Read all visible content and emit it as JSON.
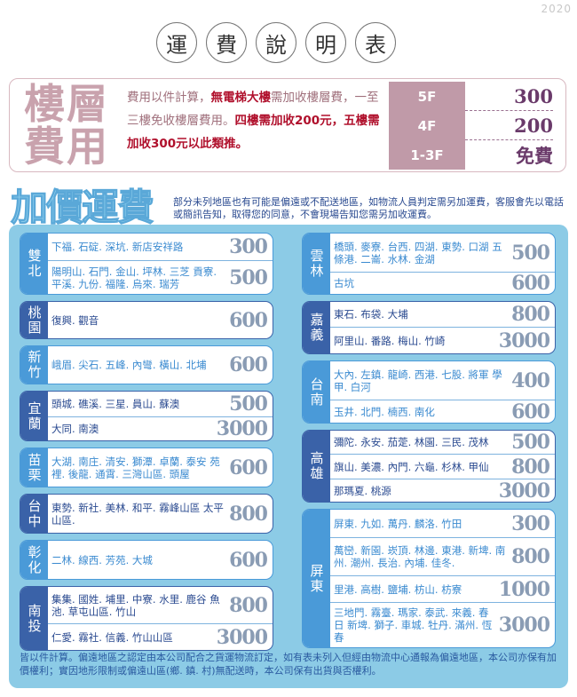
{
  "year": "2020",
  "title": [
    "運",
    "費",
    "說",
    "明",
    "表"
  ],
  "floor": {
    "heading": "樓層費用",
    "desc_parts": [
      {
        "t": "費用以件計算，",
        "hl": false
      },
      {
        "t": "無電梯大樓",
        "hl": true
      },
      {
        "t": "需加收樓層費，一至三樓免收樓層費用。",
        "hl": false
      },
      {
        "t": "四樓需加收200元，五樓需加收300元以此類推。",
        "hl": true
      }
    ],
    "table": [
      {
        "floor": "5F",
        "fee": "300"
      },
      {
        "floor": "4F",
        "fee": "200"
      },
      {
        "floor": "1-3F",
        "fee": "免費"
      }
    ]
  },
  "surcharge": {
    "heading": "加價運費",
    "desc": "部分未列地區也有可能是偏遠或不配送地區，如物流人員判定需另加運費，客服會先以電話或簡訊告知，取得您的同意，不會現場告知您需另加收運費。"
  },
  "colors": {
    "light": "#4a9ad8",
    "dark": "#3a62a8"
  },
  "left": [
    {
      "region": "雙北",
      "tone": "light",
      "rows": [
        {
          "areas": "下福. 石碇. 深坑. 新店安祥路",
          "price": "300"
        },
        {
          "areas": "陽明山. 石門. 金山. 坪林. 三芝 貢寮. 平溪. 九份. 福隆. 烏來. 瑞芳",
          "price": "500"
        }
      ]
    },
    {
      "region": "桃園",
      "tone": "dark",
      "rows": [
        {
          "areas": "復興. 觀音",
          "price": "600"
        }
      ]
    },
    {
      "region": "新竹",
      "tone": "light",
      "rows": [
        {
          "areas": "峨眉. 尖石. 五峰. 內彎. 橫山. 北埔",
          "price": "600"
        }
      ]
    },
    {
      "region": "宜蘭",
      "tone": "dark",
      "rows": [
        {
          "areas": "頭城. 礁溪. 三星. 員山. 蘇澳",
          "price": "500"
        },
        {
          "areas": "大同. 南澳",
          "price": "3000"
        }
      ]
    },
    {
      "region": "苗栗",
      "tone": "light",
      "rows": [
        {
          "areas": "大湖. 南庄. 清安. 獅潭. 卓蘭. 泰安 苑裡. 後龍. 通霄. 三灣山區. 頭屋",
          "price": "600"
        }
      ]
    },
    {
      "region": "台中",
      "tone": "dark",
      "rows": [
        {
          "areas": "東勢. 新社. 美林. 和平. 霧峰山區 太平山區.",
          "price": "800"
        }
      ]
    },
    {
      "region": "彰化",
      "tone": "light",
      "rows": [
        {
          "areas": "二林. 線西. 芳苑. 大城",
          "price": "600"
        }
      ]
    },
    {
      "region": "南投",
      "tone": "dark",
      "rows": [
        {
          "areas": "集集. 國姓. 埔里. 中寮. 水里. 鹿谷 魚池. 草屯山區. 竹山",
          "price": "800"
        },
        {
          "areas": "仁愛. 霧社. 信義. 竹山山區",
          "price": "3000"
        }
      ]
    }
  ],
  "right": [
    {
      "region": "雲林",
      "tone": "light",
      "rows": [
        {
          "areas": "橋頭. 麥寮. 台西. 四湖. 東勢. 口湖 五條港. 二崙. 水林. 金湖",
          "price": "500"
        },
        {
          "areas": "古坑",
          "price": "600"
        }
      ]
    },
    {
      "region": "嘉義",
      "tone": "dark",
      "rows": [
        {
          "areas": "東石. 布袋. 大埔",
          "price": "800"
        },
        {
          "areas": "阿里山. 番路. 梅山. 竹崎",
          "price": "3000"
        }
      ]
    },
    {
      "region": "台南",
      "tone": "light",
      "rows": [
        {
          "areas": "大內. 左鎮. 龍崎. 西港. 七股. 將軍 學甲. 白河",
          "price": "400"
        },
        {
          "areas": "玉井. 北門. 楠西. 南化",
          "price": "600"
        }
      ]
    },
    {
      "region": "高雄",
      "tone": "dark",
      "rows": [
        {
          "areas": "彌陀. 永安. 茄萣. 林園. 三民. 茂林",
          "price": "500"
        },
        {
          "areas": "旗山. 美濃. 內門. 六龜. 杉林. 甲仙",
          "price": "800"
        },
        {
          "areas": "那瑪夏. 桃源",
          "price": "3000"
        }
      ]
    },
    {
      "region": "屏東",
      "tone": "light",
      "rows": [
        {
          "areas": "屏東. 九如. 萬丹. 麟洛. 竹田",
          "price": "300"
        },
        {
          "areas": "萬巒. 新園. 崁頂. 林邊. 東港. 新埤. 南州. 潮州. 長治. 內埔. 佳冬.",
          "price": "800"
        },
        {
          "areas": "里港. 高樹. 鹽埔. 枋山. 枋寮",
          "price": "1000"
        },
        {
          "areas": "三地門. 霧臺. 瑪家. 泰武. 來義. 春日 新埤. 獅子. 車城. 牡丹. 滿州. 恆春",
          "price": "3000"
        }
      ]
    }
  ],
  "footer": "皆以件計算。偏遠地區之認定由本公司配合之貨運物流訂定，如有表未列入但經由物流中心通報為偏遠地區，本公司亦保有加價權利；實因地形限制或偏遠山區(鄉. 鎮. 村)無配送時，本公司保有出貨與否權利。"
}
